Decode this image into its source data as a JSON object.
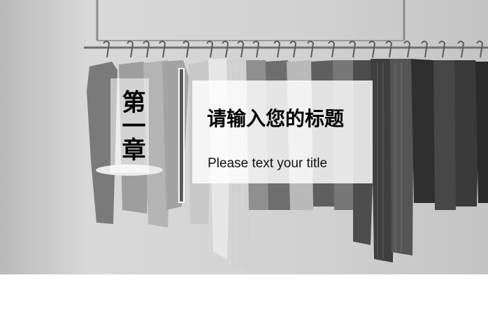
{
  "slide": {
    "chapter_label": "第一章",
    "title": "请输入您的标题",
    "subtitle": "Please text your title"
  }
}
